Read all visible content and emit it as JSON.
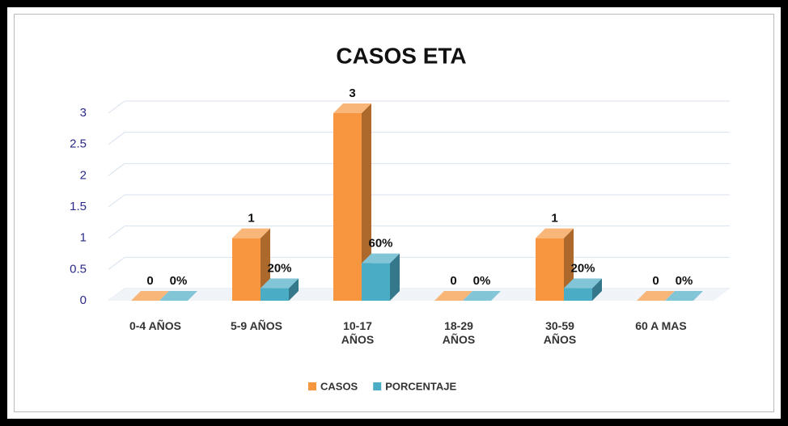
{
  "chart_data": {
    "type": "bar3d",
    "title": "CASOS ETA",
    "categories": [
      "0-4 AÑOS",
      "5-9 AÑOS",
      "10-17 AÑOS",
      "18-29 AÑOS",
      "30-59 AÑOS",
      "60 A MAS"
    ],
    "series": [
      {
        "name": "CASOS",
        "color": "#f7963f",
        "values": [
          0,
          1,
          3,
          0,
          1,
          0
        ]
      },
      {
        "name": "PORCENTAJE",
        "color": "#4bacc6",
        "values": [
          0,
          0.2,
          0.6,
          0,
          0.2,
          0
        ],
        "value_labels": [
          "0%",
          "20%",
          "60%",
          "0%",
          "20%",
          "0%"
        ]
      }
    ],
    "ylim": [
      0,
      3
    ],
    "yticks": [
      0,
      0.5,
      1,
      1.5,
      2,
      2.5,
      3
    ],
    "grid": true,
    "legend": "bottom"
  }
}
